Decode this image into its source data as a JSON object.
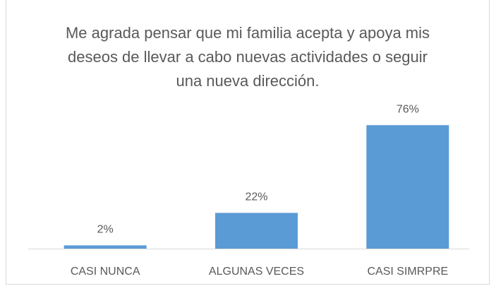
{
  "chart_data": {
    "type": "bar",
    "title": "Me agrada pensar que mi familia acepta y apoya mis deseos de llevar a cabo nuevas actividades o seguir una nueva dirección.",
    "categories": [
      "CASI NUNCA",
      "ALGUNAS VECES",
      "CASI SIMRPRE"
    ],
    "values": [
      2,
      22,
      76
    ],
    "value_labels": [
      "2%",
      "22%",
      "76%"
    ],
    "color": "#5b9bd5"
  }
}
